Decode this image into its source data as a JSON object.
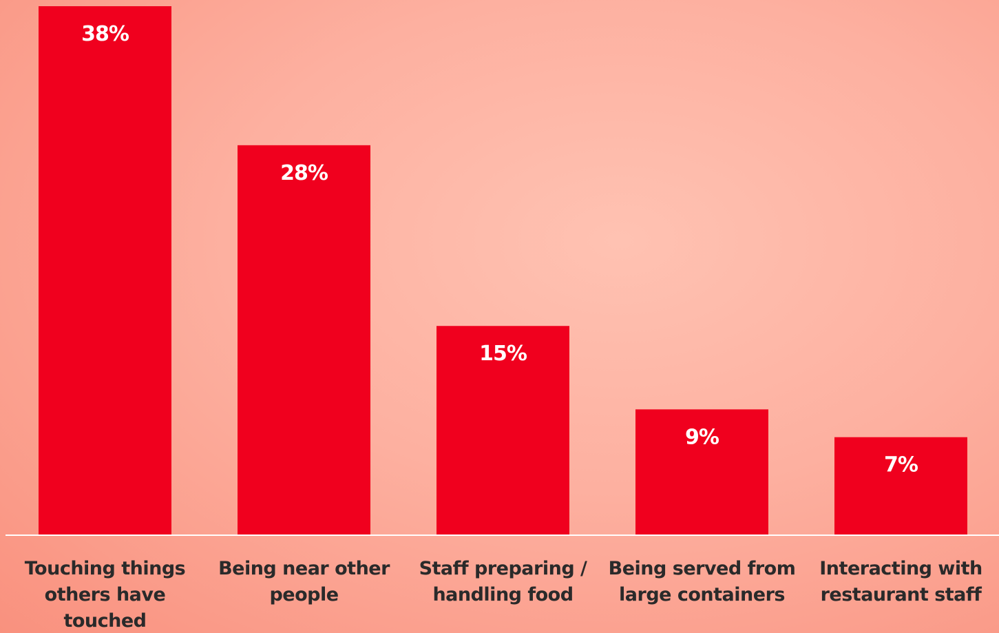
{
  "chart_data": {
    "type": "bar",
    "categories": [
      "Touching things others have touched",
      "Being near other people",
      "Staff preparing / handling food",
      "Being served from large containers",
      "Interacting with restaurant staff"
    ],
    "category_lines": [
      [
        "Touching things",
        "others have",
        "touched"
      ],
      [
        "Being near other",
        "people"
      ],
      [
        "Staff preparing /",
        "handling food"
      ],
      [
        "Being served from",
        "large containers"
      ],
      [
        "Interacting with",
        "restaurant staff"
      ]
    ],
    "values": [
      38,
      28,
      15,
      9,
      7
    ],
    "value_labels": [
      "38%",
      "28%",
      "15%",
      "9%",
      "7%"
    ],
    "ylim": [
      0,
      38
    ],
    "grid": false,
    "legend": "none",
    "colors": {
      "bar": "#f0001e",
      "value_text": "#ffffff",
      "category_text": "#2a2a2a",
      "baseline": "#ffffff"
    }
  }
}
